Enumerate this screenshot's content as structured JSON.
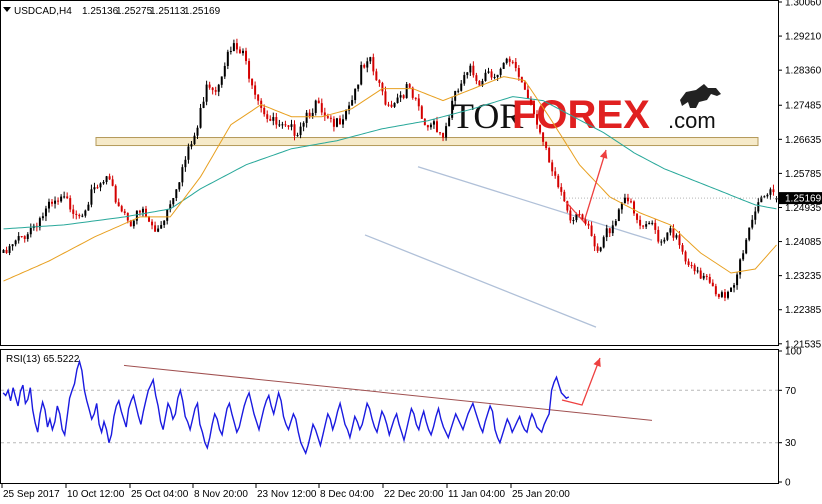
{
  "chart_data": [
    {
      "type": "candlestick",
      "header": {
        "symbol": "USDCAD,H4",
        "open": "1.25136",
        "high": "1.25275",
        "low": "1.25113",
        "close": "1.25169"
      },
      "last_price": "1.25169",
      "ylim": [
        1.2153,
        1.3006
      ],
      "y_ticks": [
        "1.30060",
        "1.29210",
        "1.28360",
        "1.27485",
        "1.26635",
        "1.25785",
        "1.24935",
        "1.24085",
        "1.23235",
        "1.22385",
        "1.21535"
      ],
      "x_ticks": [
        "25 Sep 2017",
        "10 Oct 12:00",
        "25 Oct 04:00",
        "8 Nov 20:00",
        "23 Nov 12:00",
        "8 Dec 04:00",
        "22 Dec 20:00",
        "11 Jan 04:00",
        "25 Jan 20:00"
      ],
      "close_path": [
        [
          0,
          1.238
        ],
        [
          5,
          1.242
        ],
        [
          10,
          1.246
        ],
        [
          15,
          1.25
        ],
        [
          20,
          1.252
        ],
        [
          25,
          1.249
        ],
        [
          30,
          1.254
        ],
        [
          34,
          1.257
        ],
        [
          38,
          1.251
        ],
        [
          42,
          1.247
        ],
        [
          46,
          1.249
        ],
        [
          50,
          1.244
        ],
        [
          53,
          1.248
        ],
        [
          56,
          1.254
        ],
        [
          60,
          1.262
        ],
        [
          64,
          1.27
        ],
        [
          67,
          1.282
        ],
        [
          70,
          1.28
        ],
        [
          73,
          1.287
        ],
        [
          76,
          1.29
        ],
        [
          79,
          1.288
        ],
        [
          82,
          1.282
        ],
        [
          85,
          1.276
        ],
        [
          88,
          1.272
        ],
        [
          91,
          1.27
        ],
        [
          94,
          1.269
        ],
        [
          97,
          1.27
        ],
        [
          100,
          1.274
        ],
        [
          103,
          1.276
        ],
        [
          106,
          1.272
        ],
        [
          109,
          1.27
        ],
        [
          112,
          1.274
        ],
        [
          115,
          1.278
        ],
        [
          118,
          1.284
        ],
        [
          121,
          1.286
        ],
        [
          124,
          1.28
        ],
        [
          127,
          1.276
        ],
        [
          130,
          1.278
        ],
        [
          133,
          1.28
        ],
        [
          136,
          1.276
        ],
        [
          139,
          1.27
        ],
        [
          142,
          1.272
        ],
        [
          145,
          1.268
        ],
        [
          148,
          1.276
        ],
        [
          151,
          1.281
        ],
        [
          154,
          1.284
        ],
        [
          157,
          1.282
        ],
        [
          160,
          1.285
        ],
        [
          163,
          1.283
        ],
        [
          166,
          1.286
        ],
        [
          169,
          1.285
        ],
        [
          172,
          1.28
        ],
        [
          175,
          1.275
        ],
        [
          178,
          1.266
        ],
        [
          181,
          1.258
        ],
        [
          184,
          1.254
        ],
        [
          187,
          1.248
        ],
        [
          190,
          1.25
        ],
        [
          193,
          1.244
        ],
        [
          196,
          1.238
        ],
        [
          199,
          1.244
        ],
        [
          202,
          1.248
        ],
        [
          205,
          1.254
        ],
        [
          208,
          1.248
        ],
        [
          211,
          1.244
        ],
        [
          214,
          1.246
        ],
        [
          217,
          1.242
        ],
        [
          220,
          1.246
        ],
        [
          223,
          1.24
        ],
        [
          226,
          1.235
        ],
        [
          229,
          1.233
        ],
        [
          232,
          1.234
        ],
        [
          235,
          1.23
        ],
        [
          238,
          1.227
        ],
        [
          241,
          1.23
        ],
        [
          244,
          1.24
        ],
        [
          247,
          1.248
        ],
        [
          250,
          1.254
        ],
        [
          253,
          1.253
        ],
        [
          255,
          1.2517
        ]
      ],
      "ma_fast": [
        [
          0,
          1.231
        ],
        [
          15,
          1.236
        ],
        [
          30,
          1.242
        ],
        [
          45,
          1.247
        ],
        [
          55,
          1.247
        ],
        [
          65,
          1.257
        ],
        [
          75,
          1.27
        ],
        [
          85,
          1.275
        ],
        [
          95,
          1.272
        ],
        [
          105,
          1.272
        ],
        [
          115,
          1.274
        ],
        [
          125,
          1.279
        ],
        [
          135,
          1.279
        ],
        [
          145,
          1.276
        ],
        [
          155,
          1.279
        ],
        [
          165,
          1.282
        ],
        [
          172,
          1.281
        ],
        [
          180,
          1.272
        ],
        [
          190,
          1.26
        ],
        [
          200,
          1.252
        ],
        [
          210,
          1.248
        ],
        [
          220,
          1.245
        ],
        [
          230,
          1.238
        ],
        [
          240,
          1.233
        ],
        [
          248,
          1.234
        ],
        [
          255,
          1.24
        ]
      ],
      "ma_slow": [
        [
          0,
          1.244
        ],
        [
          20,
          1.245
        ],
        [
          40,
          1.247
        ],
        [
          55,
          1.249
        ],
        [
          65,
          1.254
        ],
        [
          80,
          1.26
        ],
        [
          95,
          1.264
        ],
        [
          110,
          1.266
        ],
        [
          125,
          1.269
        ],
        [
          140,
          1.271
        ],
        [
          155,
          1.274
        ],
        [
          168,
          1.277
        ],
        [
          178,
          1.276
        ],
        [
          188,
          1.272
        ],
        [
          198,
          1.268
        ],
        [
          208,
          1.263
        ],
        [
          218,
          1.259
        ],
        [
          228,
          1.256
        ],
        [
          238,
          1.253
        ],
        [
          248,
          1.25
        ],
        [
          255,
          1.249
        ]
      ],
      "colors": {
        "bull": "#000000",
        "bear": "#d40000",
        "ma_fast": "#e8a020",
        "ma_slow": "#28a89a",
        "channel": "#b0c0d8",
        "zone_fill": "#f5e6c0",
        "zone_border": "#b49a5a",
        "arrow": "#ee4040"
      }
    },
    {
      "type": "line",
      "title": "RSI(13) 65.5222",
      "ylim": [
        0,
        100
      ],
      "y_ticks": [
        "100",
        "70",
        "30",
        "0"
      ],
      "levels": [
        70,
        30
      ],
      "values": [
        68,
        66,
        70,
        62,
        72,
        65,
        58,
        69,
        74,
        60,
        63,
        72,
        55,
        45,
        38,
        52,
        61,
        55,
        42,
        48,
        40,
        46,
        58,
        52,
        40,
        36,
        50,
        64,
        70,
        75,
        86,
        92,
        85,
        70,
        62,
        55,
        48,
        52,
        60,
        44,
        38,
        46,
        40,
        30,
        36,
        50,
        58,
        62,
        54,
        48,
        42,
        56,
        62,
        66,
        58,
        50,
        44,
        54,
        62,
        70,
        74,
        78,
        66,
        58,
        46,
        40,
        50,
        60,
        56,
        48,
        52,
        64,
        70,
        62,
        50,
        46,
        40,
        48,
        56,
        60,
        44,
        38,
        30,
        26,
        34,
        44,
        52,
        48,
        40,
        36,
        46,
        56,
        60,
        52,
        45,
        38,
        42,
        50,
        58,
        64,
        68,
        60,
        52,
        46,
        40,
        48,
        56,
        62,
        66,
        58,
        52,
        60,
        68,
        62,
        50,
        44,
        40,
        46,
        52,
        48,
        38,
        30,
        26,
        22,
        28,
        36,
        44,
        40,
        34,
        28,
        36,
        44,
        52,
        48,
        40,
        46,
        54,
        60,
        52,
        44,
        40,
        34,
        42,
        50,
        46,
        40,
        44,
        52,
        60,
        56,
        48,
        42,
        38,
        46,
        54,
        50,
        44,
        36,
        42,
        48,
        52,
        44,
        38,
        32,
        40,
        48,
        56,
        52,
        44,
        40,
        48,
        54,
        46,
        40,
        36,
        42,
        50,
        56,
        48,
        42,
        38,
        34,
        40,
        46,
        52,
        48,
        44,
        40,
        46,
        52,
        56,
        60,
        54,
        48,
        42,
        38,
        46,
        52,
        58,
        54,
        40,
        34,
        30,
        36,
        42,
        48,
        44,
        38,
        42,
        46,
        50,
        44,
        40,
        38,
        46,
        52,
        48,
        42,
        40,
        38,
        44,
        48,
        52,
        70,
        76,
        80,
        74,
        68,
        66,
        64,
        65
      ]
    }
  ],
  "watermark": {
    "tor": "TOR",
    "forex": "FOREX",
    "com": ".com"
  }
}
